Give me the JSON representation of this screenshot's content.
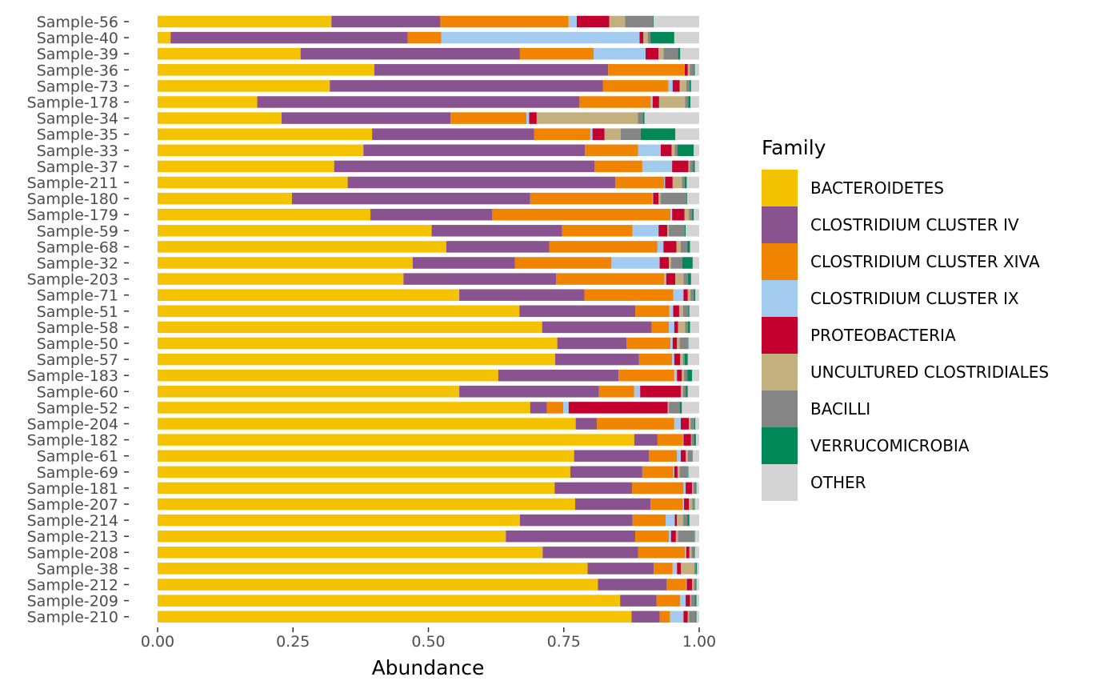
{
  "chart_data": {
    "type": "bar",
    "orientation": "horizontal",
    "stacked": true,
    "xlabel": "Abundance",
    "ylabel": "",
    "xlim": [
      0,
      1
    ],
    "xticks": [
      "0.00",
      "0.25",
      "0.50",
      "0.75",
      "1.00"
    ],
    "grid": false,
    "legend": {
      "title": "Family",
      "position": "right"
    },
    "series": [
      {
        "name": "BACTEROIDETES",
        "color": "#F5C200"
      },
      {
        "name": "CLOSTRIDIUM CLUSTER IV",
        "color": "#88538F"
      },
      {
        "name": "CLOSTRIDIUM CLUSTER XIVA",
        "color": "#F08400"
      },
      {
        "name": "CLOSTRIDIUM CLUSTER IX",
        "color": "#A3CBEF"
      },
      {
        "name": "PROTEOBACTERIA",
        "color": "#C4002F"
      },
      {
        "name": "UNCULTURED CLOSTRIDIALES",
        "color": "#C3B07F"
      },
      {
        "name": "BACILLI",
        "color": "#858585"
      },
      {
        "name": "VERRUCOMICROBIA",
        "color": "#008856"
      },
      {
        "name": "OTHER",
        "color": "#D4D4D4"
      }
    ],
    "categories": [
      "Sample-56",
      "Sample-40",
      "Sample-39",
      "Sample-36",
      "Sample-73",
      "Sample-178",
      "Sample-34",
      "Sample-35",
      "Sample-33",
      "Sample-37",
      "Sample-211",
      "Sample-180",
      "Sample-179",
      "Sample-59",
      "Sample-68",
      "Sample-32",
      "Sample-203",
      "Sample-71",
      "Sample-51",
      "Sample-58",
      "Sample-50",
      "Sample-57",
      "Sample-183",
      "Sample-60",
      "Sample-52",
      "Sample-204",
      "Sample-182",
      "Sample-61",
      "Sample-69",
      "Sample-181",
      "Sample-207",
      "Sample-214",
      "Sample-213",
      "Sample-208",
      "Sample-38",
      "Sample-212",
      "Sample-209",
      "Sample-210"
    ],
    "values": [
      [
        0.321,
        0.201,
        0.237,
        0.015,
        0.06,
        0.029,
        0.052,
        0.001,
        0.084
      ],
      [
        0.024,
        0.438,
        0.062,
        0.366,
        0.007,
        0.008,
        0.005,
        0.044,
        0.046
      ],
      [
        0.264,
        0.405,
        0.136,
        0.096,
        0.024,
        0.009,
        0.027,
        0.004,
        0.035
      ],
      [
        0.4,
        0.432,
        0.14,
        0.001,
        0.006,
        0.004,
        0.007,
        0.002,
        0.008
      ],
      [
        0.318,
        0.504,
        0.121,
        0.008,
        0.013,
        0.012,
        0.006,
        0.003,
        0.015
      ],
      [
        0.184,
        0.595,
        0.132,
        0.003,
        0.012,
        0.048,
        0.006,
        0.004,
        0.016
      ],
      [
        0.229,
        0.312,
        0.14,
        0.005,
        0.014,
        0.187,
        0.009,
        0.003,
        0.101
      ],
      [
        0.396,
        0.299,
        0.104,
        0.004,
        0.022,
        0.03,
        0.037,
        0.064,
        0.044
      ],
      [
        0.38,
        0.409,
        0.098,
        0.042,
        0.02,
        0.006,
        0.005,
        0.03,
        0.01
      ],
      [
        0.326,
        0.481,
        0.088,
        0.055,
        0.03,
        0.003,
        0.006,
        0.003,
        0.008
      ],
      [
        0.351,
        0.494,
        0.09,
        0.002,
        0.014,
        0.017,
        0.005,
        0.004,
        0.023
      ],
      [
        0.248,
        0.44,
        0.226,
        0.001,
        0.01,
        0.004,
        0.048,
        0.001,
        0.022
      ],
      [
        0.393,
        0.225,
        0.329,
        0.003,
        0.023,
        0.008,
        0.006,
        0.003,
        0.01
      ],
      [
        0.506,
        0.241,
        0.13,
        0.048,
        0.016,
        0.003,
        0.029,
        0.002,
        0.025
      ],
      [
        0.533,
        0.19,
        0.2,
        0.011,
        0.024,
        0.008,
        0.012,
        0.005,
        0.017
      ],
      [
        0.471,
        0.189,
        0.178,
        0.089,
        0.017,
        0.004,
        0.021,
        0.019,
        0.012
      ],
      [
        0.454,
        0.282,
        0.2,
        0.003,
        0.017,
        0.015,
        0.008,
        0.006,
        0.015
      ],
      [
        0.557,
        0.231,
        0.164,
        0.019,
        0.008,
        0.005,
        0.006,
        0.003,
        0.007
      ],
      [
        0.668,
        0.214,
        0.063,
        0.007,
        0.011,
        0.007,
        0.01,
        0.002,
        0.018
      ],
      [
        0.71,
        0.202,
        0.032,
        0.01,
        0.007,
        0.013,
        0.005,
        0.004,
        0.017
      ],
      [
        0.738,
        0.128,
        0.081,
        0.004,
        0.008,
        0.005,
        0.015,
        0.001,
        0.02
      ],
      [
        0.734,
        0.155,
        0.061,
        0.004,
        0.011,
        0.005,
        0.003,
        0.006,
        0.021
      ],
      [
        0.629,
        0.222,
        0.103,
        0.005,
        0.009,
        0.004,
        0.006,
        0.009,
        0.013
      ],
      [
        0.557,
        0.258,
        0.065,
        0.011,
        0.075,
        0.004,
        0.005,
        0.004,
        0.021
      ],
      [
        0.688,
        0.031,
        0.03,
        0.01,
        0.183,
        0.002,
        0.02,
        0.004,
        0.032
      ],
      [
        0.772,
        0.039,
        0.143,
        0.012,
        0.015,
        0.003,
        0.007,
        0.002,
        0.007
      ],
      [
        0.88,
        0.043,
        0.047,
        0.001,
        0.014,
        0.001,
        0.004,
        0.004,
        0.006
      ],
      [
        0.769,
        0.138,
        0.052,
        0.007,
        0.009,
        0.004,
        0.008,
        0.001,
        0.012
      ],
      [
        0.762,
        0.133,
        0.057,
        0.002,
        0.006,
        0.004,
        0.015,
        0.001,
        0.02
      ],
      [
        0.733,
        0.143,
        0.095,
        0.004,
        0.012,
        0.002,
        0.004,
        0.002,
        0.005
      ],
      [
        0.771,
        0.139,
        0.06,
        0.002,
        0.009,
        0.006,
        0.004,
        0.001,
        0.008
      ],
      [
        0.669,
        0.208,
        0.061,
        0.017,
        0.004,
        0.011,
        0.008,
        0.004,
        0.018
      ],
      [
        0.643,
        0.239,
        0.062,
        0.004,
        0.009,
        0.004,
        0.03,
        0.001,
        0.008
      ],
      [
        0.711,
        0.176,
        0.087,
        0.002,
        0.006,
        0.004,
        0.004,
        0.002,
        0.008
      ],
      [
        0.794,
        0.122,
        0.035,
        0.008,
        0.007,
        0.025,
        0.003,
        0.002,
        0.004
      ],
      [
        0.813,
        0.127,
        0.036,
        0.001,
        0.01,
        0.003,
        0.003,
        0.002,
        0.005
      ],
      [
        0.854,
        0.067,
        0.044,
        0.01,
        0.008,
        0.002,
        0.007,
        0.003,
        0.005
      ],
      [
        0.875,
        0.052,
        0.019,
        0.025,
        0.008,
        0.002,
        0.012,
        0.002,
        0.005
      ]
    ]
  }
}
